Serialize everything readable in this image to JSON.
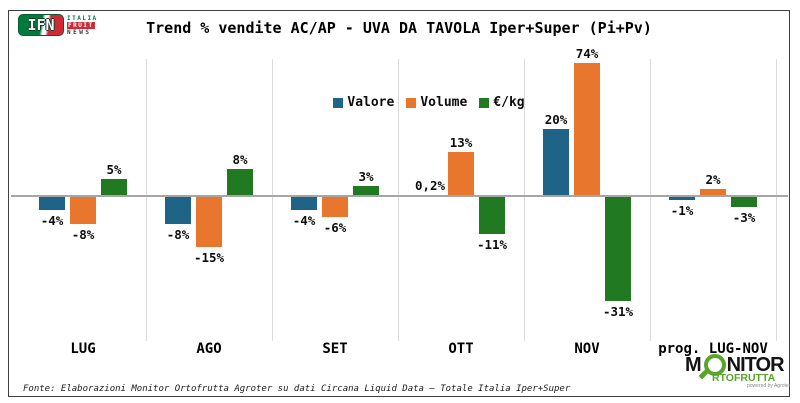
{
  "header": {
    "title": "Trend % vendite AC/AP - UVA DA TAVOLA Iper+Super (Pi+Pv)"
  },
  "logo_ifn": {
    "acronym": "IFN",
    "line1": "ITALIA",
    "line2": "FRUIT",
    "line3": "NEWS"
  },
  "legend": [
    {
      "label": "Valore",
      "color": "#1F6387"
    },
    {
      "label": "Volume",
      "color": "#E8762D"
    },
    {
      "label": "€/kg",
      "color": "#217A21"
    }
  ],
  "chart_data": {
    "type": "bar",
    "title": "Trend % vendite AC/AP - UVA DA TAVOLA Iper+Super (Pi+Pv)",
    "unit": "%",
    "categories": [
      "LUG",
      "AGO",
      "SET",
      "OTT",
      "NOV",
      "prog. LUG-NOV"
    ],
    "series": [
      {
        "name": "Valore",
        "color": "#1F6387",
        "values": [
          -4,
          -8,
          -4,
          0.2,
          20,
          -1
        ],
        "labels": [
          "-4%",
          "-8%",
          "-4%",
          "0,2%",
          "20%",
          "-1%"
        ]
      },
      {
        "name": "Volume",
        "color": "#E8762D",
        "values": [
          -8,
          -15,
          -6,
          13,
          74,
          2
        ],
        "labels": [
          "-8%",
          "-15%",
          "-6%",
          "13%",
          "74%",
          "2%"
        ]
      },
      {
        "name": "€/kg",
        "color": "#217A21",
        "values": [
          5,
          8,
          3,
          -11,
          -31,
          -3
        ],
        "labels": [
          "5%",
          "8%",
          "3%",
          "-11%",
          "-31%",
          "-3%"
        ]
      }
    ],
    "baseline": 0,
    "grid": "vertical-category-separators",
    "legend_position": "top-center",
    "ylim_display": [
      -35,
      40
    ],
    "note": "NOV Volume bar (74%) is clipped at the top of the plot area"
  },
  "footer": {
    "source": "Fonte: Elaborazioni Monitor Ortofrutta Agroter su dati Circana Liquid Data – Totale Italia Iper+Super"
  },
  "logo_monitor": {
    "part1": "M",
    "part2": "NITOR",
    "line2": "RTOFRUTTA",
    "powered": "powered by Agroter"
  }
}
